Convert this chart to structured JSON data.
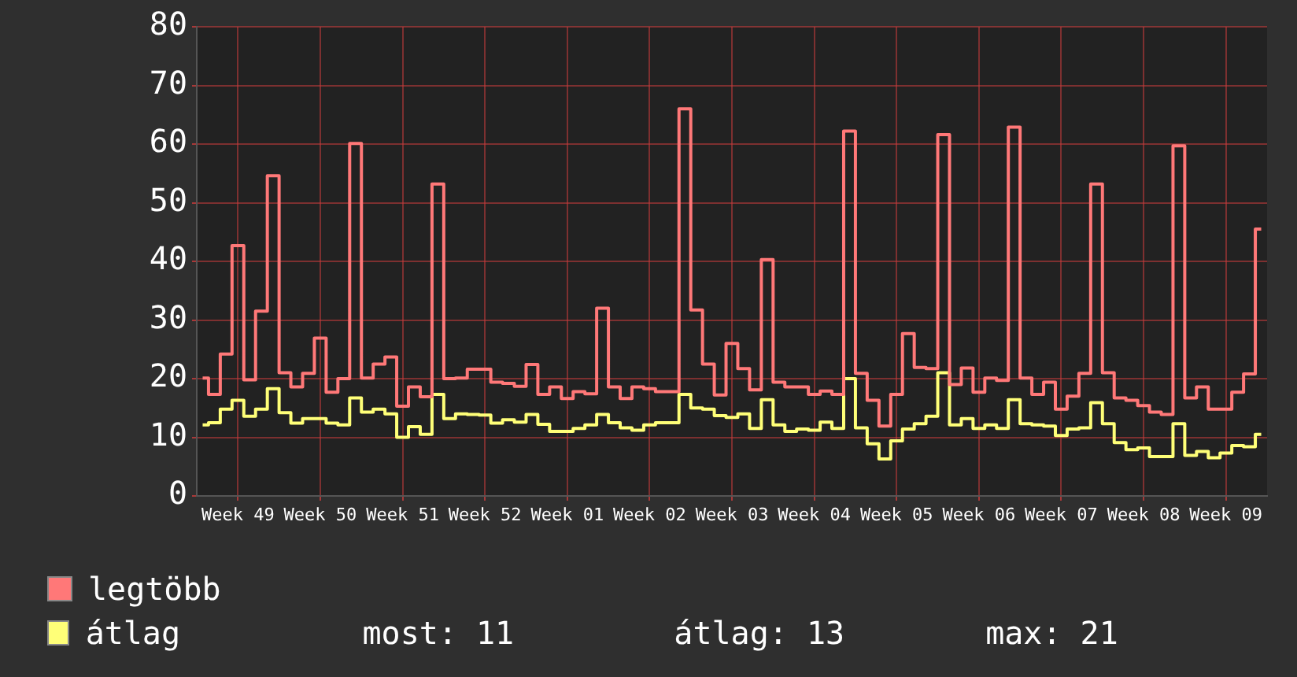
{
  "chart_data": {
    "type": "step",
    "categories": [
      null,
      null,
      null,
      "Week 49",
      null,
      null,
      null,
      null,
      null,
      null,
      "Week 50",
      null,
      null,
      null,
      null,
      null,
      null,
      "Week 51",
      null,
      null,
      null,
      null,
      null,
      null,
      "Week 52",
      null,
      null,
      null,
      null,
      null,
      null,
      "Week 01",
      null,
      null,
      null,
      null,
      null,
      null,
      "Week 02",
      null,
      null,
      null,
      null,
      null,
      null,
      "Week 03",
      null,
      null,
      null,
      null,
      null,
      null,
      "Week 04",
      null,
      null,
      null,
      null,
      null,
      null,
      "Week 05",
      null,
      null,
      null,
      null,
      null,
      null,
      "Week 06",
      null,
      null,
      null,
      null,
      null,
      null,
      "Week 07",
      null,
      null,
      null,
      null,
      null,
      null,
      "Week 08",
      null,
      null,
      null,
      null,
      null,
      null,
      "Week 09",
      null,
      null,
      null
    ],
    "series": [
      {
        "name": "legtöbb",
        "color": "#ff7878",
        "values": [
          20.1,
          17.3,
          24.2,
          42.7,
          19.8,
          31.5,
          54.6,
          21,
          18.6,
          20.9,
          26.9,
          17.7,
          20,
          60.1,
          20.1,
          22.5,
          23.7,
          15.3,
          18.6,
          16.9,
          53.2,
          20,
          20.1,
          21.6,
          21.6,
          19.4,
          19.2,
          18.7,
          22.4,
          17.3,
          18.6,
          16.6,
          17.8,
          17.4,
          32,
          18.6,
          16.6,
          18.6,
          18.3,
          17.8,
          17.8,
          66,
          31.7,
          22.5,
          17.2,
          26,
          21.7,
          18.1,
          40.3,
          19.4,
          18.6,
          18.6,
          17.3,
          17.9,
          17.3,
          62.2,
          20.9,
          16.3,
          11.9,
          17.3,
          27.7,
          21.9,
          21.7,
          61.6,
          19,
          21.8,
          17.7,
          20.1,
          19.7,
          62.9,
          20.1,
          17.3,
          19.4,
          14.8,
          17,
          20.9,
          53.2,
          21,
          16.7,
          16.3,
          15.4,
          14.3,
          13.9,
          59.7,
          16.7,
          18.6,
          14.8,
          14.8,
          17.7,
          20.8,
          45.5
        ]
      },
      {
        "name": "átlag",
        "color": "#ffff78",
        "values": [
          12.1,
          12.5,
          14.8,
          16.3,
          13.6,
          14.8,
          18.3,
          14.2,
          12.4,
          13.2,
          13.2,
          12.4,
          12.1,
          16.7,
          14.3,
          14.8,
          14,
          10,
          11.8,
          10.5,
          17.3,
          13.2,
          14,
          13.9,
          13.8,
          12.4,
          13,
          12.6,
          13.9,
          12.2,
          11,
          11,
          11.5,
          12.1,
          13.9,
          12.5,
          11.6,
          11.2,
          12.1,
          12.5,
          12.5,
          17.3,
          15,
          14.8,
          13.7,
          13.4,
          14,
          11.5,
          16.4,
          12.1,
          11,
          11.4,
          11.2,
          12.6,
          11.5,
          20,
          11.6,
          8.9,
          6.3,
          9.4,
          11.4,
          12.3,
          13.6,
          21,
          12.1,
          13.2,
          11.5,
          12.1,
          11.5,
          16.4,
          12.3,
          12.1,
          11.9,
          10.3,
          11.4,
          11.6,
          15.9,
          12.3,
          9.1,
          7.9,
          8.2,
          6.7,
          6.7,
          12.3,
          6.9,
          7.6,
          6.5,
          7.3,
          8.6,
          8.4,
          10.5
        ]
      }
    ],
    "ylim": [
      0,
      80
    ],
    "yticks": [
      0,
      10,
      20,
      30,
      40,
      50,
      60,
      70,
      80
    ],
    "grid": true,
    "legend": "bottom left",
    "annotations": [
      "most: 11",
      "átlag: 13",
      "max: 21"
    ]
  }
}
